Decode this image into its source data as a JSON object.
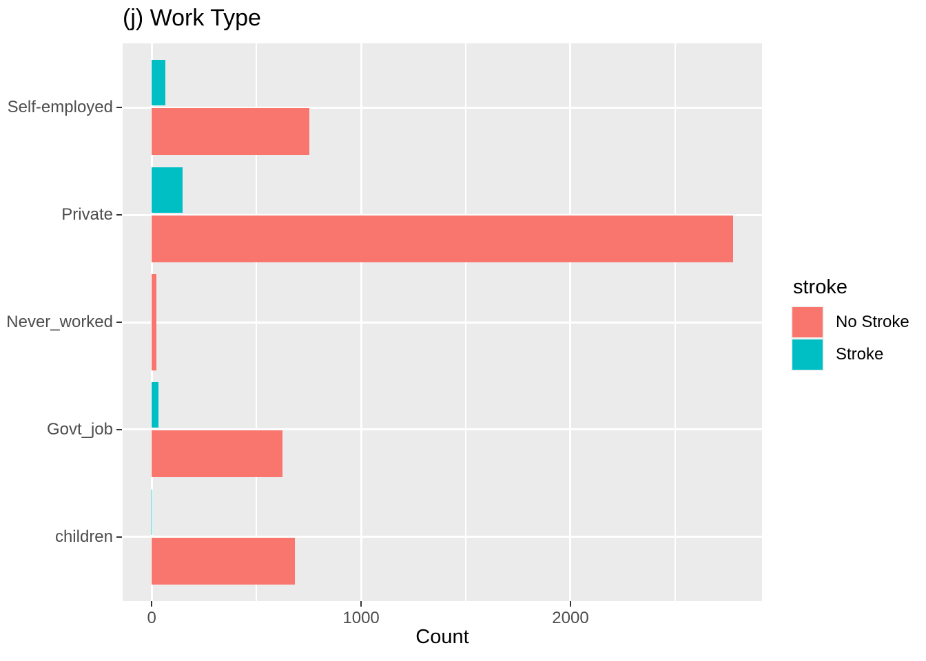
{
  "chart_data": {
    "type": "bar",
    "orientation": "horizontal",
    "title": "(j) Work Type",
    "xlabel": "Count",
    "ylabel": "",
    "categories": [
      "Self-employed",
      "Private",
      "Never_worked",
      "Govt_job",
      "children"
    ],
    "series": [
      {
        "name": "No Stroke",
        "color": "#F8766D",
        "values": [
          754,
          2776,
          22,
          624,
          685
        ]
      },
      {
        "name": "Stroke",
        "color": "#00BFC4",
        "values": [
          65,
          149,
          0,
          33,
          2
        ]
      }
    ],
    "legend": {
      "title": "stroke",
      "position": "right",
      "entries": [
        "No Stroke",
        "Stroke"
      ]
    },
    "x_ticks": [
      0,
      1000,
      2000
    ],
    "x_minor_ticks": [
      500,
      1500,
      2500
    ],
    "xlim_display": [
      -138.8,
      2914.8
    ],
    "grid": true,
    "colors": {
      "panel_background": "#EBEBEB",
      "gridline": "#FFFFFF",
      "axis_text": "#4D4D4D",
      "tick_mark": "#333333",
      "legend_key_frame": "#F2F2F2"
    }
  }
}
